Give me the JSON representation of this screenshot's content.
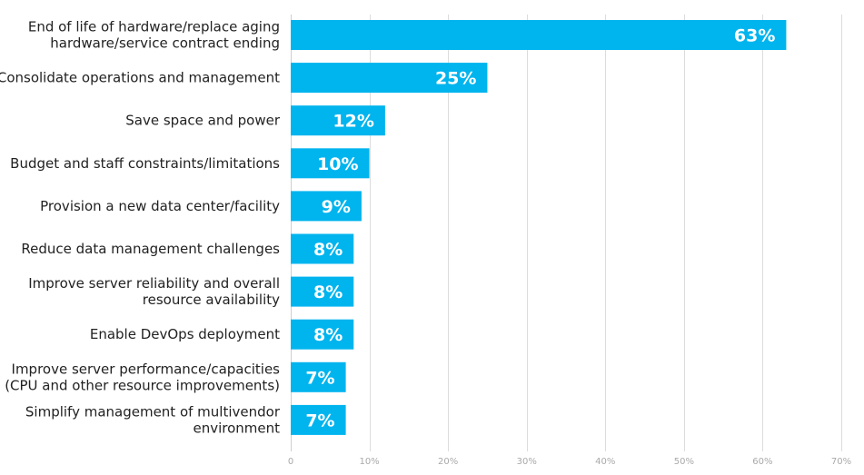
{
  "chart_data": {
    "type": "bar",
    "orientation": "horizontal",
    "categories": [
      "End of life of hardware/replace aging\nhardware/service contract ending",
      "Consolidate operations and management",
      "Save space and power",
      "Budget and staff constraints/limitations",
      "Provision a new data center/facility",
      "Reduce data management challenges",
      "Improve server reliability and overall\nresource availability",
      "Enable DevOps deployment",
      "Improve server performance/capacities\n(CPU and other resource improvements)",
      "Simplify management of multivendor\nenvironment"
    ],
    "values": [
      63,
      25,
      12,
      10,
      9,
      8,
      8,
      8,
      7,
      7
    ],
    "value_labels": [
      "63%",
      "25%",
      "12%",
      "10%",
      "9%",
      "8%",
      "8%",
      "8%",
      "7%",
      "7%"
    ],
    "xlim": [
      0,
      70
    ],
    "x_ticks": [
      "0",
      "10%",
      "20%",
      "30%",
      "40%",
      "50%",
      "60%",
      "70%"
    ],
    "x_tick_values": [
      0,
      10,
      20,
      30,
      40,
      50,
      60,
      70
    ],
    "grid": "vertical",
    "bar_color": "#00b4ee",
    "value_label_color": "#ffffff"
  }
}
